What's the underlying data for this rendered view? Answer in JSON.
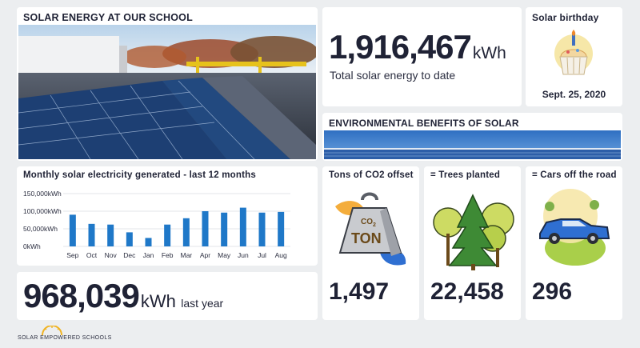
{
  "solar_card": {
    "title": "SOLAR ENERGY AT OUR SCHOOL"
  },
  "total": {
    "value": "1,916,467",
    "unit": "kWh",
    "label": "Total solar energy to date"
  },
  "birthday": {
    "title": "Solar birthday",
    "date": "Sept. 25, 2020",
    "icon": "cupcake-icon"
  },
  "env": {
    "title": "ENVIRONMENTAL BENEFITS OF SOLAR"
  },
  "monthly": {
    "title": "Monthly solar electricity generated - last 12 months",
    "chart_data": {
      "type": "bar",
      "categories": [
        "Sep",
        "Oct",
        "Nov",
        "Dec",
        "Jan",
        "Feb",
        "Mar",
        "Apr",
        "May",
        "Jun",
        "Jul",
        "Aug"
      ],
      "values": [
        90000,
        64000,
        62000,
        40000,
        24000,
        62000,
        80000,
        100000,
        96000,
        110000,
        96000,
        98000
      ],
      "y_ticks": [
        "150,000kWh",
        "100,000kWh",
        "50,000kWh",
        "0kWh"
      ],
      "ylim": [
        0,
        150000
      ],
      "bar_color": "#1f78c8"
    }
  },
  "last_year": {
    "value": "968,039",
    "unit": "kWh",
    "label": "last year"
  },
  "co2": {
    "title": "Tons of CO2 offset",
    "value": "1,497",
    "icon_text_top": "CO",
    "icon_text_sub": "2",
    "icon_text_bottom": "TON"
  },
  "trees": {
    "title": "= Trees planted",
    "value": "22,458"
  },
  "cars": {
    "title": "= Cars off the road",
    "value": "296"
  },
  "footer": {
    "logo_text": "SOLAR EMPOWERED SCHOOLS"
  }
}
